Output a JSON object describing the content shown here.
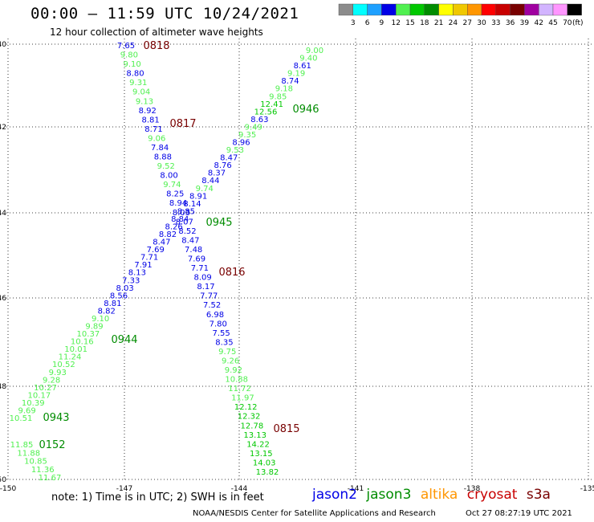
{
  "header": {
    "title": "00:00 – 11:59 UTC 10/24/2021",
    "subtitle": "12 hour collection of altimeter wave heights"
  },
  "color_scale": {
    "unit": "(ft)",
    "bins": [
      {
        "label": "3",
        "color": "#8c8c8c"
      },
      {
        "label": "6",
        "color": "#00ffff"
      },
      {
        "label": "9",
        "color": "#1ea0ff"
      },
      {
        "label": "12",
        "color": "#0000e6"
      },
      {
        "label": "15",
        "color": "#50f050"
      },
      {
        "label": "18",
        "color": "#00c800"
      },
      {
        "label": "21",
        "color": "#008c00"
      },
      {
        "label": "24",
        "color": "#ffff00"
      },
      {
        "label": "27",
        "color": "#f0c800"
      },
      {
        "label": "30",
        "color": "#ff9600"
      },
      {
        "label": "33",
        "color": "#ff0000"
      },
      {
        "label": "36",
        "color": "#c80000"
      },
      {
        "label": "39",
        "color": "#780000"
      },
      {
        "label": "42",
        "color": "#a000a0"
      },
      {
        "label": "45",
        "color": "#d2b4ff"
      },
      {
        "label": "70",
        "color": "#ff96ff"
      },
      {
        "label": "",
        "color": "#000000"
      }
    ]
  },
  "axes": {
    "lat_labels": [
      "-40",
      "-42",
      "-44",
      "-46",
      "-48",
      "-50"
    ],
    "lon_labels": [
      "-150",
      "-147",
      "-144",
      "-141",
      "-138",
      "-135"
    ]
  },
  "passes": [
    {
      "time": "0818",
      "satellite": "cryosat"
    },
    {
      "time": "0817",
      "satellite": "cryosat"
    },
    {
      "time": "0816",
      "satellite": "cryosat"
    },
    {
      "time": "0815",
      "satellite": "cryosat"
    },
    {
      "time": "0946",
      "satellite": "jason3"
    },
    {
      "time": "0945",
      "satellite": "jason3"
    },
    {
      "time": "0944",
      "satellite": "jason3"
    },
    {
      "time": "0943",
      "satellite": "jason3"
    },
    {
      "time": "0152",
      "satellite": "jason3"
    }
  ],
  "track_a_values": [
    "7.65",
    "9.80",
    "9.10",
    "8.80",
    "9.31",
    "9.04",
    "9.13",
    "8.92",
    "8.81",
    "8.71",
    "9.06",
    "7.84",
    "8.88",
    "9.52",
    "8.00",
    "9.74",
    "8.25",
    "8.94",
    "8.03",
    "8.07",
    "8.52",
    "8.47",
    "7.48",
    "7.69",
    "7.71",
    "8.09",
    "8.17",
    "7.77",
    "7.52",
    "6.98",
    "7.80",
    "7.55",
    "8.35",
    "9.75",
    "9.26",
    "9.92",
    "10.88",
    "11.72",
    "11.97",
    "12.12",
    "12.32",
    "12.78",
    "13.13",
    "14.22",
    "13.15",
    "14.03",
    "13.82"
  ],
  "track_b_values": [
    "9.00",
    "9.40",
    "8.61",
    "9.19",
    "8.74",
    "9.18",
    "9.85",
    "12.41",
    "12.56",
    "8.63",
    "9.49",
    "9.35",
    "8.96",
    "9.53",
    "8.47",
    "8.76",
    "8.37",
    "8.44",
    "9.74",
    "8.91",
    "8.14",
    "8.85",
    "8.84",
    "8.26",
    "8.82",
    "8.47",
    "7.69",
    "7.71",
    "7.91",
    "8.13",
    "7.33",
    "8.03",
    "8.56",
    "8.81",
    "8.82",
    "9.10",
    "9.89",
    "10.37",
    "10.16",
    "10.01",
    "11.24",
    "10.52",
    "9.93",
    "9.28",
    "10.27",
    "10.17",
    "10.39",
    "9.69",
    "10.51"
  ],
  "track_c_values": [
    "11.85",
    "11.88",
    "10.85",
    "11.36",
    "11.67"
  ],
  "footer": {
    "note": "note:  1) Time is in UTC; 2) SWH is in feet",
    "satellites": [
      {
        "name": "jason2",
        "color": "#0000e6"
      },
      {
        "name": "jason3",
        "color": "#008c00"
      },
      {
        "name": "altika",
        "color": "#ff9600"
      },
      {
        "name": "cryosat",
        "color": "#c80000"
      },
      {
        "name": "s3a",
        "color": "#780000"
      }
    ],
    "credit": "NOAA/NESDIS Center for Satellite Applications and Research",
    "timestamp": "Oct 27 08:27:19 UTC 2021"
  }
}
